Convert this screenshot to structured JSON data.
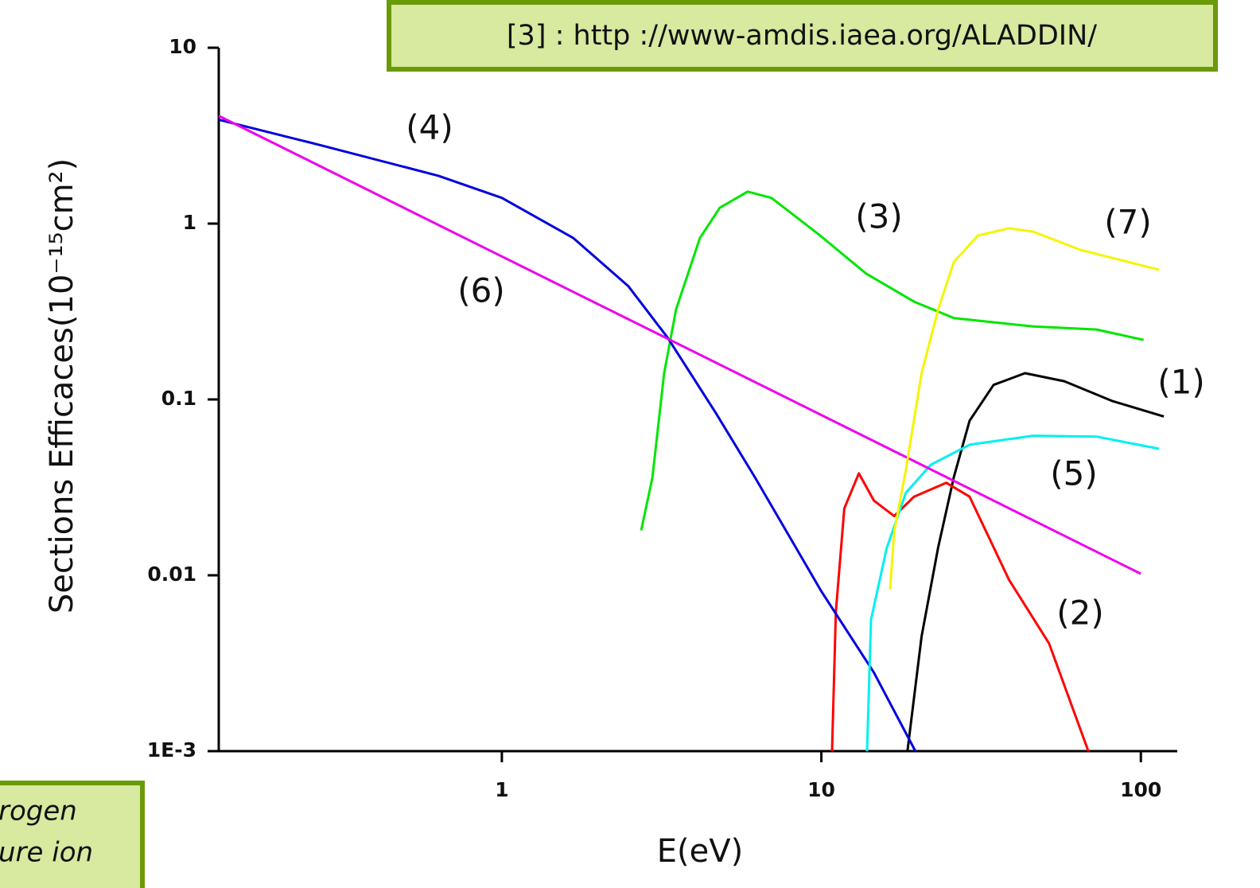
{
  "chart_data": {
    "type": "line",
    "x_label": "E(eV)",
    "y_label": "Sections Efficaces(10⁻¹⁵cm²)",
    "xscale": "log",
    "yscale": "log",
    "xlim": [
      0.13,
      130
    ],
    "ylim": [
      0.001,
      10
    ],
    "xticks": [
      1,
      10,
      100
    ],
    "yticks": [
      10,
      1,
      0.1,
      0.01,
      {
        "value": 0.001,
        "label": "1E-3"
      }
    ],
    "series": [
      {
        "name": "(1)",
        "color": "#000000",
        "x": [
          18.6,
          20.6,
          23.2,
          26,
          29.1,
          34.6,
          43.4,
          57.6,
          81.3,
          118
        ],
        "values": [
          0.001,
          0.0045,
          0.0144,
          0.0363,
          0.0756,
          0.121,
          0.141,
          0.127,
          0.098,
          0.08
        ]
      },
      {
        "name": "(2)",
        "color": "#ff0000",
        "x": [
          10.8,
          11.1,
          11.8,
          13.1,
          14.6,
          16.9,
          19.5,
          24.6,
          29.1,
          38.7,
          51.6,
          68.5
        ],
        "values": [
          0.001,
          0.0062,
          0.024,
          0.038,
          0.0266,
          0.0217,
          0.028,
          0.0336,
          0.028,
          0.0094,
          0.0041,
          0.001
        ]
      },
      {
        "name": "(3)",
        "color": "#00e600",
        "x": [
          2.73,
          2.96,
          3.22,
          3.51,
          4.17,
          4.81,
          5.88,
          6.98,
          9.8,
          13.8,
          19.5,
          26,
          46,
          72.6,
          102
        ],
        "values": [
          0.018,
          0.036,
          0.141,
          0.325,
          0.83,
          1.23,
          1.52,
          1.4,
          0.87,
          0.52,
          0.36,
          0.29,
          0.26,
          0.25,
          0.218
        ]
      },
      {
        "name": "(4)",
        "color": "#0000dd",
        "x": [
          0.13,
          0.269,
          0.633,
          1,
          1.67,
          2.49,
          3.3,
          4.67,
          6.2,
          10,
          14.6,
          19.7
        ],
        "values": [
          3.9,
          2.8,
          1.87,
          1.4,
          0.83,
          0.44,
          0.225,
          0.084,
          0.036,
          0.0081,
          0.0028,
          0.001
        ]
      },
      {
        "name": "(5)",
        "color": "#00f0f0",
        "x": [
          13.9,
          14.3,
          16,
          18.4,
          22,
          29.1,
          46,
          72.6,
          114
        ],
        "values": [
          0.001,
          0.0056,
          0.0142,
          0.0295,
          0.0425,
          0.0553,
          0.0622,
          0.0615,
          0.0524
        ]
      },
      {
        "name": "(6)",
        "color": "#ee00ee",
        "x": [
          0.13,
          1,
          10,
          100
        ],
        "values": [
          4.1,
          0.65,
          0.0815,
          0.0102
        ]
      },
      {
        "name": "(7)",
        "color": "#f5f500",
        "x": [
          16.4,
          16.9,
          18.4,
          20.6,
          23.2,
          26,
          30.9,
          38.7,
          46,
          64.6,
          114
        ],
        "values": [
          0.0083,
          0.0176,
          0.04,
          0.141,
          0.325,
          0.606,
          0.855,
          0.94,
          0.9,
          0.71,
          0.546
        ]
      }
    ]
  },
  "source_note": "[3] : http ://www-amdis.iaea.org/ALADDIN/",
  "side_note": [
    "rogen",
    "ure ion"
  ]
}
